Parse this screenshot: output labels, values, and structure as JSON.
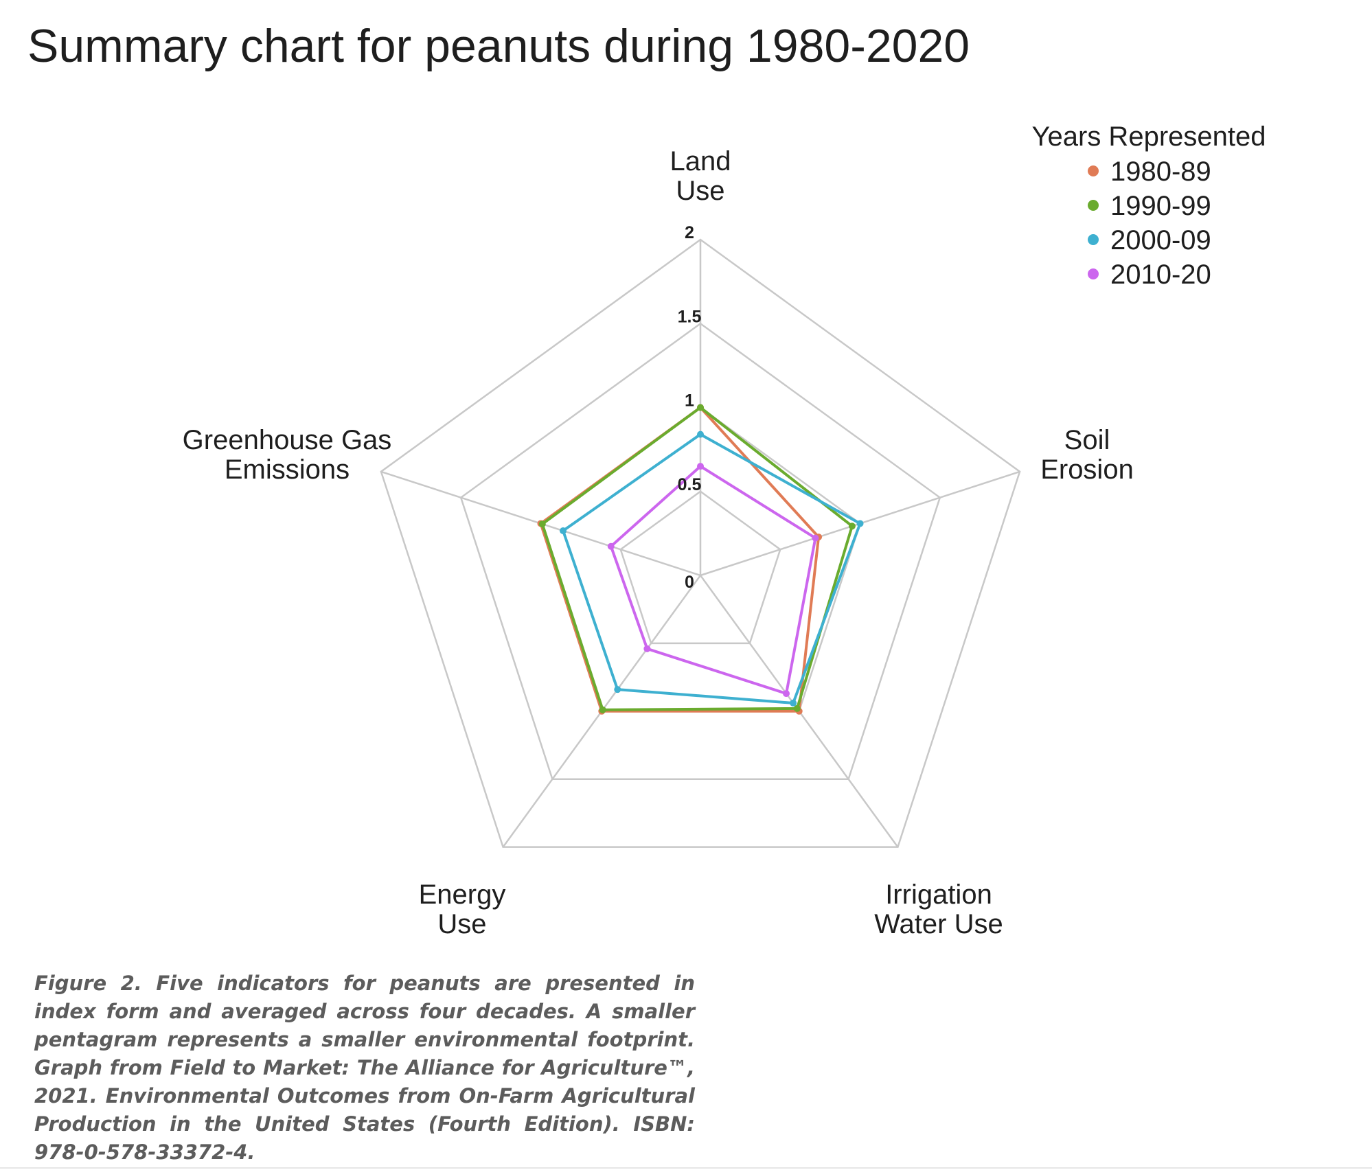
{
  "page": {
    "title": "Summary chart for peanuts during 1980-2020",
    "caption": "Figure 2. Five indicators for peanuts are presented in index form and averaged across four decades. A smaller pentagram represents a smaller environmental footprint. Graph from Field to Market: The Alliance for Agriculture™, 2021. Environmental Outcomes from On-Farm Agricultural Production in the United States (Fourth Edition). ISBN: 978-0-578-33372-4."
  },
  "chart_data": {
    "type": "radar",
    "title": "Summary chart for peanuts during 1980-2020",
    "axes": [
      {
        "lines": [
          "Land",
          "Use"
        ]
      },
      {
        "lines": [
          "Soil",
          "Erosion"
        ]
      },
      {
        "lines": [
          "Irrigation",
          "Water Use"
        ]
      },
      {
        "lines": [
          "Energy",
          "Use"
        ]
      },
      {
        "lines": [
          "Greenhouse Gas",
          "Emissions"
        ]
      }
    ],
    "ticks": [
      "0",
      "0.5",
      "1",
      "1.5",
      "2"
    ],
    "tick_values": [
      0,
      0.5,
      1,
      1.5,
      2
    ],
    "range": [
      0,
      2
    ],
    "grid": true,
    "legend": {
      "title": "Years Represented",
      "position": "top-right"
    },
    "series": [
      {
        "name": "1980-89",
        "color": "#e07b55",
        "values": [
          1.0,
          0.74,
          1.0,
          1.0,
          1.0
        ]
      },
      {
        "name": "1990-99",
        "color": "#6aab2e",
        "values": [
          1.0,
          0.95,
          0.98,
          0.99,
          0.99
        ]
      },
      {
        "name": "2000-09",
        "color": "#3eb0d0",
        "values": [
          0.84,
          1.0,
          0.94,
          0.84,
          0.86
        ]
      },
      {
        "name": "2010-20",
        "color": "#cc66ee",
        "values": [
          0.65,
          0.72,
          0.87,
          0.54,
          0.56
        ]
      }
    ]
  }
}
